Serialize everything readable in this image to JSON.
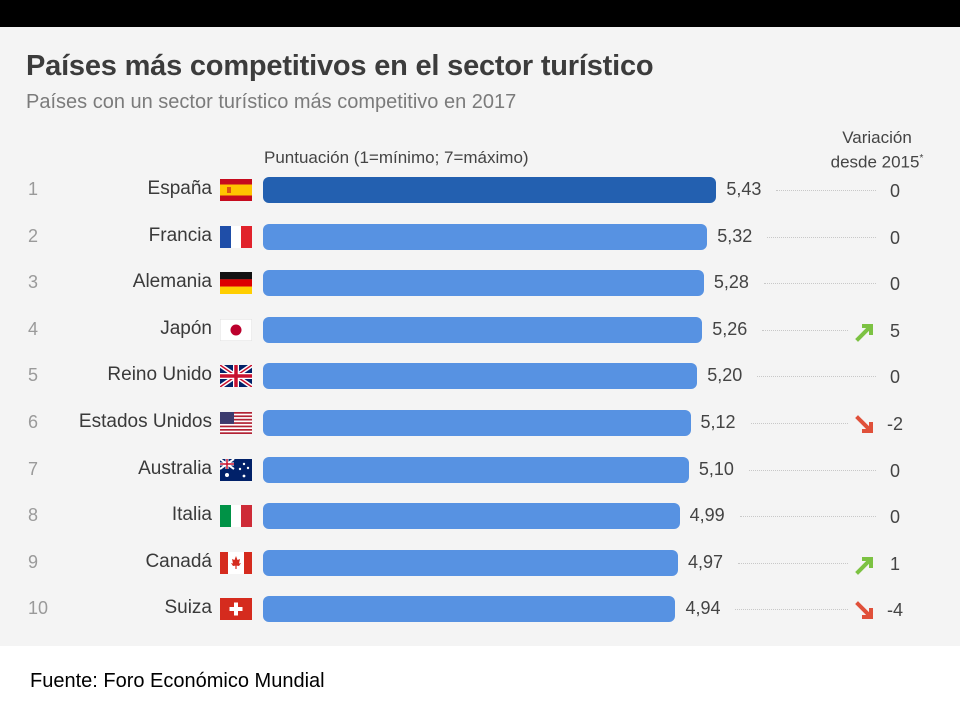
{
  "header": {
    "title": "Países más competitivos en el sector turístico",
    "subtitle": "Países con un sector turístico más competitivo en 2017",
    "axis_label": "Puntuación (1=mínimo; 7=máximo)",
    "variation_header_line1": "Variación",
    "variation_header_line2": "desde 2015",
    "variation_header_mark": "*"
  },
  "footer": {
    "source": "Fuente:  Foro Económico Mundial"
  },
  "colors": {
    "bar": "#5792e2",
    "bar_top": "#2360b0",
    "up": "#7cc242",
    "down": "#e0503a"
  },
  "chart_data": {
    "type": "bar",
    "orientation": "horizontal",
    "title": "Países más competitivos en el sector turístico",
    "subtitle": "Países con un sector turístico más competitivo en 2017",
    "xlabel": "Puntuación (1=mínimo; 7=máximo)",
    "categories": [
      "España",
      "Francia",
      "Alemania",
      "Japón",
      "Reino Unido",
      "Estados Unidos",
      "Australia",
      "Italia",
      "Canadá",
      "Suiza"
    ],
    "ranks": [
      "1",
      "2",
      "3",
      "4",
      "5",
      "6",
      "7",
      "8",
      "9",
      "10"
    ],
    "values": [
      5.43,
      5.32,
      5.28,
      5.26,
      5.2,
      5.12,
      5.1,
      4.99,
      4.97,
      4.94
    ],
    "value_labels": [
      "5,43",
      "5,32",
      "5,28",
      "5,26",
      "5,20",
      "5,12",
      "5,10",
      "4,99",
      "4,97",
      "4,94"
    ],
    "variation": [
      "0",
      "0",
      "0",
      "5",
      "0",
      "-2",
      "0",
      "0",
      "1",
      "-4"
    ],
    "variation_direction": [
      "none",
      "none",
      "none",
      "up",
      "none",
      "down",
      "none",
      "none",
      "up",
      "down"
    ],
    "flags": [
      "flag-spain",
      "flag-france",
      "flag-germany",
      "flag-japan",
      "flag-uk",
      "flag-usa",
      "flag-australia",
      "flag-italy",
      "flag-canada",
      "flag-switzerland"
    ]
  }
}
